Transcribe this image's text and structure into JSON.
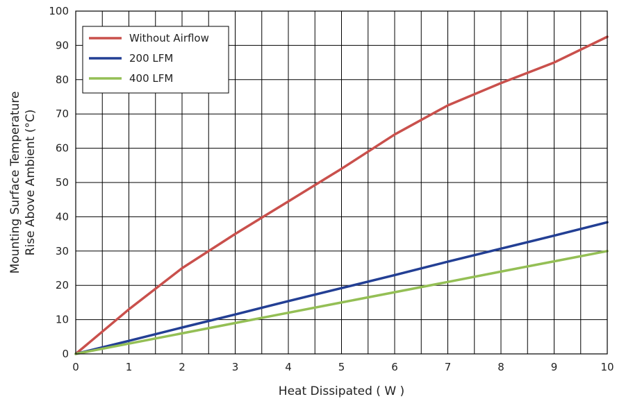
{
  "chart_data": {
    "type": "line",
    "title": "",
    "xlabel": "Heat Dissipated ( W )",
    "ylabel_line1": "Mounting Surface Temperature",
    "ylabel_line2": "Rise Above  Ambient (°C)",
    "xlim": [
      0,
      10
    ],
    "ylim": [
      0,
      100
    ],
    "x_ticks": [
      0,
      1,
      2,
      3,
      4,
      5,
      6,
      7,
      8,
      9,
      10
    ],
    "y_ticks": [
      0,
      10,
      20,
      30,
      40,
      50,
      60,
      70,
      80,
      90,
      100
    ],
    "x_minor_step": 0.5,
    "grid": true,
    "legend_position": "top-left",
    "series": [
      {
        "name": "Without Airflow",
        "color": "#c9504c",
        "x": [
          0,
          1,
          2,
          3,
          4,
          5,
          6,
          7,
          8,
          9,
          10
        ],
        "y": [
          0,
          13,
          25,
          35,
          44.5,
          54,
          64,
          72.5,
          79,
          85,
          92.5
        ]
      },
      {
        "name": "200 LFM",
        "color": "#233f94",
        "x": [
          0,
          1,
          2,
          3,
          4,
          5,
          6,
          7,
          8,
          9,
          10
        ],
        "y": [
          0,
          3.8,
          7.7,
          11.5,
          15.4,
          19.2,
          23,
          26.9,
          30.7,
          34.5,
          38.4
        ]
      },
      {
        "name": "400 LFM",
        "color": "#94bf55",
        "x": [
          0,
          1,
          2,
          3,
          4,
          5,
          6,
          7,
          8,
          9,
          10
        ],
        "y": [
          0,
          3,
          6,
          9,
          12,
          15,
          18,
          21,
          24,
          27,
          30
        ]
      }
    ]
  }
}
